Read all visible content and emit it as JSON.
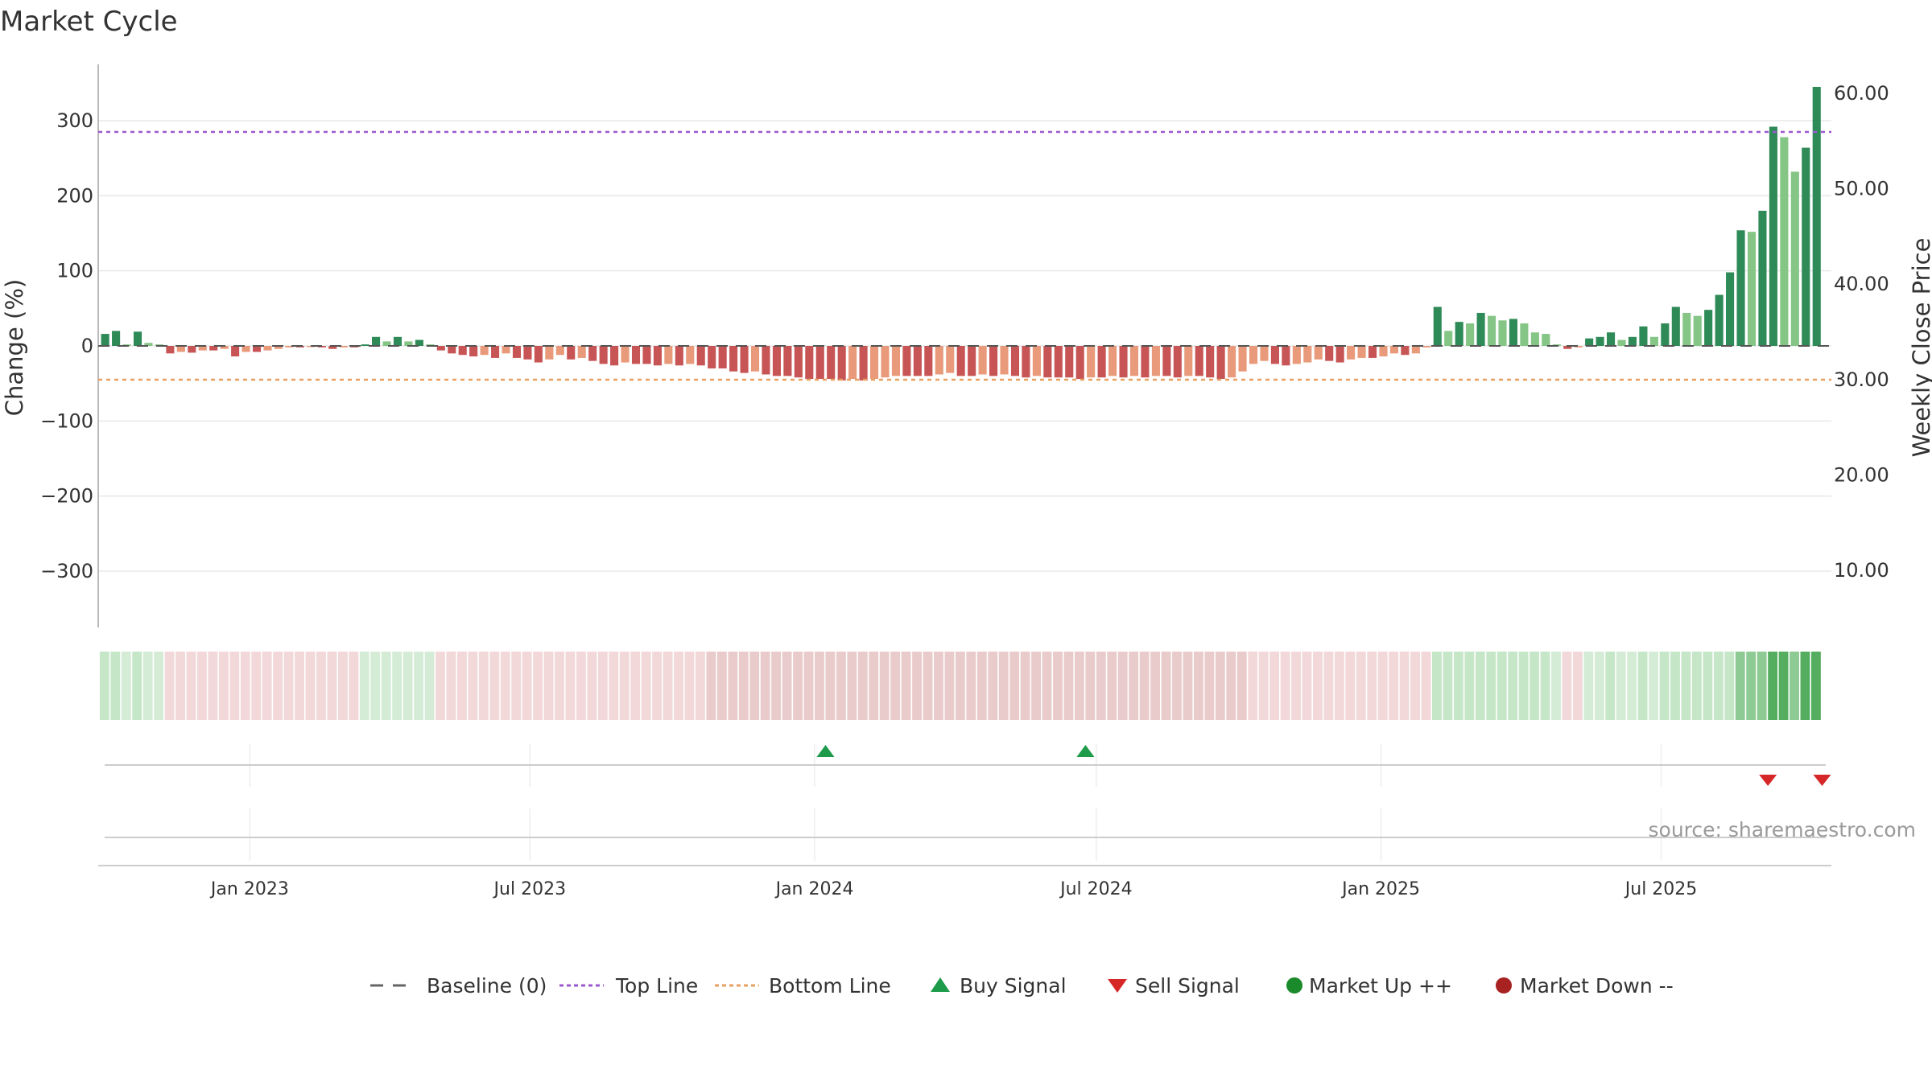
{
  "chart_data": {
    "type": "bar",
    "title": "Market Cycle",
    "ylabel_left": "Change (%)",
    "ylabel_right": "Weekly Close Price",
    "y_left_ticks": [
      "300",
      "200",
      "100",
      "0",
      "−100",
      "−200",
      "−300"
    ],
    "y_left_tick_values": [
      300,
      200,
      100,
      0,
      -100,
      -200,
      -300
    ],
    "ylim_left": [
      -375,
      375
    ],
    "y_right_ticks": [
      "60.00",
      "50.00",
      "40.00",
      "30.00",
      "20.00",
      "10.00"
    ],
    "y_right_tick_values": [
      60,
      50,
      40,
      30,
      20,
      10
    ],
    "x_ticks": [
      "Jan 2023",
      "Jul 2023",
      "Jan 2024",
      "Jul 2024",
      "Jan 2025",
      "Jul 2025"
    ],
    "x_tick_dates": [
      "2023-01-01",
      "2023-07-01",
      "2024-01-01",
      "2024-07-01",
      "2025-01-01",
      "2025-07-01"
    ],
    "x_start": "2022-09-25",
    "x_end": "2025-10-19",
    "first_bar_date": "2022-09-26",
    "top_line": 285,
    "bottom_line": -45,
    "grid": true,
    "bar_colors": {
      "up_strong": "#2e8a57",
      "up_weak": "#85c585",
      "down_strong": "#c85555",
      "down_weak": "#e89a7a"
    },
    "values": [
      16,
      20,
      2,
      19,
      4,
      2,
      -10,
      -8,
      -9,
      -6,
      -6,
      -4,
      -14,
      -8,
      -8,
      -6,
      -4,
      -2,
      -2,
      -1,
      -2,
      -4,
      -2,
      -2,
      2,
      12,
      6,
      12,
      6,
      8,
      2,
      -6,
      -10,
      -12,
      -14,
      -12,
      -16,
      -10,
      -16,
      -18,
      -22,
      -18,
      -12,
      -18,
      -16,
      -20,
      -24,
      -26,
      -22,
      -24,
      -24,
      -26,
      -24,
      -26,
      -24,
      -26,
      -30,
      -30,
      -34,
      -36,
      -34,
      -38,
      -40,
      -40,
      -42,
      -44,
      -44,
      -44,
      -46,
      -44,
      -46,
      -44,
      -42,
      -40,
      -40,
      -40,
      -40,
      -38,
      -36,
      -40,
      -40,
      -38,
      -40,
      -38,
      -40,
      -42,
      -40,
      -42,
      -42,
      -42,
      -44,
      -42,
      -42,
      -40,
      -42,
      -40,
      -42,
      -40,
      -40,
      -42,
      -40,
      -40,
      -42,
      -44,
      -42,
      -34,
      -24,
      -20,
      -24,
      -26,
      -24,
      -22,
      -18,
      -20,
      -22,
      -18,
      -16,
      -16,
      -14,
      -10,
      -12,
      -10,
      -2,
      52,
      20,
      32,
      30,
      44,
      40,
      34,
      36,
      30,
      18,
      16,
      2,
      -4,
      -2,
      10,
      12,
      18,
      8,
      12,
      26,
      12,
      30,
      52,
      44,
      40,
      48,
      68,
      98,
      154,
      152,
      180,
      292,
      278,
      232,
      264,
      345
    ],
    "strength_strip": {
      "label_order": [
        "down_light",
        "down_medium",
        "up_light",
        "up_medium",
        "up_strong",
        "up_max"
      ],
      "colors": {
        "down_light": "#f2d8d8",
        "down_medium": "#eacbcb",
        "up_light": "#d4ecd6",
        "up_medium": "#c6e6c8",
        "up_strong": "#8ecb94",
        "up_max": "#55ad5f"
      }
    },
    "buy_signals": [
      "2024-01-08",
      "2024-06-24"
    ],
    "sell_signals": [
      "2025-09-08",
      "2025-10-13"
    ],
    "source_text": "source: sharemaestro.com",
    "legend": [
      {
        "label": "Baseline (0)",
        "kind": "dash-line",
        "color": "#666666"
      },
      {
        "label": "Top Line",
        "kind": "dotted-line",
        "color": "#9b59d0"
      },
      {
        "label": "Bottom Line",
        "kind": "dotted-line",
        "color": "#e8a060"
      },
      {
        "label": "Buy Signal",
        "kind": "triangle-up",
        "color": "#1e9b4a"
      },
      {
        "label": "Sell Signal",
        "kind": "triangle-down",
        "color": "#d62728"
      },
      {
        "label": "Market Up ++",
        "kind": "circle",
        "color": "#1a8a2a"
      },
      {
        "label": "Market Down --",
        "kind": "circle",
        "color": "#a82222"
      }
    ],
    "legend_position": "bottom-center"
  }
}
